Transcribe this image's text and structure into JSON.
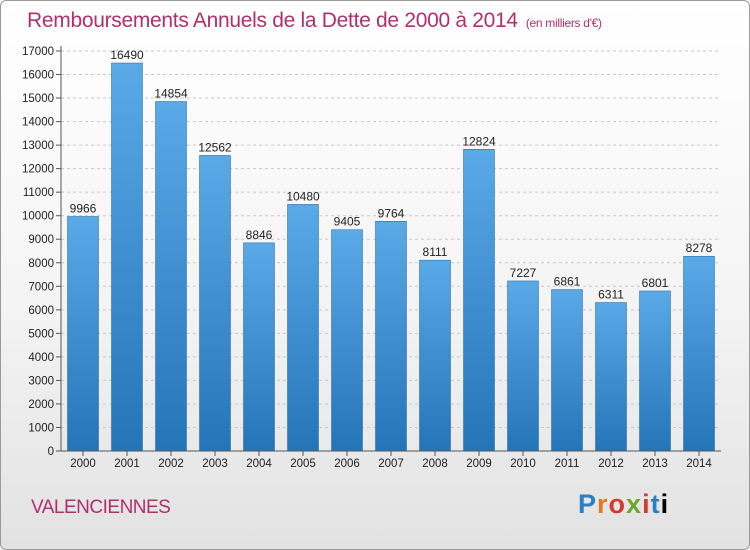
{
  "header": {
    "title": "Remboursements Annuels de la Dette de 2000 à 2014",
    "unit": "(en milliers d'€)"
  },
  "footer": {
    "city": "VALENCIENNES",
    "logo_letters": [
      "P",
      "r",
      "o",
      "x",
      "i",
      "t",
      "i"
    ]
  },
  "colors": {
    "bar_top": "#5aaae8",
    "bar_bottom": "#2474b8",
    "title": "#b0306e"
  },
  "chart_data": {
    "type": "bar",
    "title": "Remboursements Annuels de la Dette de 2000 à 2014",
    "xlabel": "",
    "ylabel": "",
    "categories": [
      "2000",
      "2001",
      "2002",
      "2003",
      "2004",
      "2005",
      "2006",
      "2007",
      "2008",
      "2009",
      "2010",
      "2011",
      "2012",
      "2013",
      "2014"
    ],
    "values": [
      9966,
      16490,
      14854,
      12562,
      8846,
      10480,
      9405,
      9764,
      8111,
      12824,
      7227,
      6861,
      6311,
      6801,
      8278
    ],
    "ylim": [
      0,
      17000
    ],
    "ytick_step": 1000,
    "grid": true
  }
}
